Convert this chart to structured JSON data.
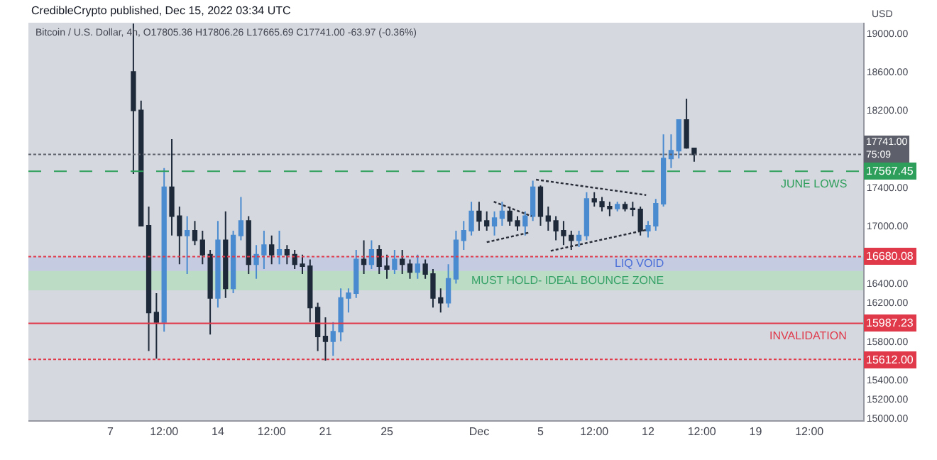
{
  "chart_data": {
    "type": "candlestick",
    "title": "CredibleCrypto published, Dec 15, 2022 03:34 UTC",
    "subtitle": "Bitcoin / U.S. Dollar, 4h, O17805.36 H17806.26 L17665.69 C17741.00 -63.97 (-0.36%)",
    "ylabel": "USD",
    "colors": [
      "#1e2a3a",
      "#1e2a3a",
      "#1e2a3a",
      "#1e2a3a",
      "#4a8bd0",
      "#1e2a3a",
      "#1e2a3a",
      "#4a8bd0",
      "#1e2a3a",
      "#1e2a3a",
      "#1e2a3a",
      "#4a8bd0",
      "#1e2a3a",
      "#4a8bd0",
      "#4a8bd0",
      "#1e2a3a",
      "#4a8bd0",
      "#4a8bd0",
      "#1e2a3a",
      "#4a8bd0",
      "#1e2a3a",
      "#1e2a3a",
      "#1e2a3a",
      "#1e2a3a",
      "#1e2a3a",
      "#1e2a3a",
      "#4a8bd0",
      "#4a8bd0",
      "#4a8bd0",
      "#4a8bd0",
      "#1e2a3a",
      "#4a8bd0",
      "#1e2a3a",
      "#1e2a3a",
      "#4a8bd0",
      "#1e2a3a",
      "#1e2a3a",
      "#4a8bd0",
      "#1e2a3a",
      "#1e2a3a",
      "#1e2a3a",
      "#4a8bd0",
      "#4a8bd0",
      "#4a8bd0",
      "#4a8bd0",
      "#1e2a3a",
      "#1e2a3a",
      "#4a8bd0",
      "#4a8bd0",
      "#1e2a3a",
      "#1e2a3a",
      "#4a8bd0",
      "#4a8bd0",
      "#1e2a3a",
      "#1e2a3a",
      "#1e2a3a",
      "#1e2a3a",
      "#1e2a3a",
      "#4a8bd0",
      "#4a8bd0",
      "#1e2a3a",
      "#1e2a3a",
      "#1e2a3a",
      "#4a8bd0",
      "#1e2a3a",
      "#1e2a3a",
      "#1e2a3a",
      "#4a8bd0",
      "#4a8bd0",
      "#4a8bd0",
      "#4a8bd0",
      "#4a8bd0",
      "#1e2a3a",
      "#1e2a3a"
    ],
    "x": [
      "2022-11-08T12:00",
      "2022-11-09T00:00",
      "2022-11-09T12:00",
      "2022-11-10T00:00",
      "2022-11-10T12:00",
      "2022-11-11T00:00",
      "2022-11-11T12:00",
      "2022-11-12T00:00",
      "2022-11-12T12:00",
      "2022-11-13T00:00",
      "2022-11-13T12:00",
      "2022-11-14T00:00",
      "2022-11-14T12:00",
      "2022-11-15T00:00",
      "2022-11-15T12:00",
      "2022-11-16T00:00",
      "2022-11-16T12:00",
      "2022-11-17T00:00",
      "2022-11-17T12:00",
      "2022-11-18T00:00",
      "2022-11-18T12:00",
      "2022-11-19T00:00",
      "2022-11-19T12:00",
      "2022-11-20T00:00",
      "2022-11-20T12:00",
      "2022-11-21T00:00",
      "2022-11-21T12:00",
      "2022-11-22T00:00",
      "2022-11-22T12:00",
      "2022-11-23T00:00",
      "2022-11-23T12:00",
      "2022-11-24T00:00",
      "2022-11-24T12:00",
      "2022-11-25T00:00",
      "2022-11-25T12:00",
      "2022-11-26T00:00",
      "2022-11-26T12:00",
      "2022-11-27T00:00",
      "2022-11-27T12:00",
      "2022-11-28T00:00",
      "2022-11-28T12:00",
      "2022-11-29T00:00",
      "2022-11-29T12:00",
      "2022-11-30T00:00",
      "2022-11-30T12:00",
      "2022-12-01T00:00",
      "2022-12-01T12:00",
      "2022-12-02T00:00",
      "2022-12-02T12:00",
      "2022-12-03T00:00",
      "2022-12-03T12:00",
      "2022-12-04T00:00",
      "2022-12-04T12:00",
      "2022-12-05T00:00",
      "2022-12-05T12:00",
      "2022-12-06T00:00",
      "2022-12-06T12:00",
      "2022-12-07T00:00",
      "2022-12-07T12:00",
      "2022-12-08T00:00",
      "2022-12-08T12:00",
      "2022-12-09T00:00",
      "2022-12-09T12:00",
      "2022-12-10T00:00",
      "2022-12-10T12:00",
      "2022-12-11T00:00",
      "2022-12-11T12:00",
      "2022-12-12T00:00",
      "2022-12-12T12:00",
      "2022-12-13T00:00",
      "2022-12-13T12:00",
      "2022-12-14T00:00",
      "2022-12-14T12:00",
      "2022-12-15T00:00"
    ],
    "ohlc": [
      [
        18600,
        19100,
        17540,
        18200
      ],
      [
        18200,
        18300,
        17000,
        17000
      ],
      [
        17000,
        17200,
        15700,
        16100
      ],
      [
        16100,
        16300,
        15620,
        16000
      ],
      [
        16000,
        17600,
        15900,
        17400
      ],
      [
        17400,
        17900,
        16900,
        17100
      ],
      [
        17100,
        17200,
        16600,
        16900
      ],
      [
        16900,
        17100,
        16500,
        16950
      ],
      [
        16950,
        17050,
        16800,
        16850
      ],
      [
        16850,
        16950,
        16600,
        16700
      ],
      [
        16700,
        16750,
        15870,
        16250
      ],
      [
        16250,
        17050,
        16150,
        16850
      ],
      [
        16850,
        17150,
        16250,
        16350
      ],
      [
        16350,
        16950,
        16300,
        16900
      ],
      [
        16900,
        17300,
        16850,
        17050
      ],
      [
        17050,
        17100,
        16500,
        16600
      ],
      [
        16600,
        16800,
        16450,
        16700
      ],
      [
        16700,
        16950,
        16550,
        16800
      ],
      [
        16800,
        16900,
        16600,
        16700
      ],
      [
        16700,
        16950,
        16600,
        16750
      ],
      [
        16750,
        16800,
        16600,
        16700
      ],
      [
        16700,
        16750,
        16550,
        16600
      ],
      [
        16600,
        16700,
        16500,
        16580
      ],
      [
        16580,
        16650,
        16000,
        16150
      ],
      [
        16150,
        16200,
        15700,
        15850
      ],
      [
        15850,
        16050,
        15600,
        15800
      ],
      [
        15800,
        16000,
        15650,
        15900
      ],
      [
        15900,
        16350,
        15800,
        16250
      ],
      [
        16250,
        16350,
        16100,
        16300
      ],
      [
        16300,
        16750,
        16250,
        16650
      ],
      [
        16650,
        16850,
        16500,
        16600
      ],
      [
        16600,
        16850,
        16550,
        16750
      ],
      [
        16750,
        16800,
        16500,
        16580
      ],
      [
        16580,
        16700,
        16450,
        16550
      ],
      [
        16550,
        16750,
        16500,
        16650
      ],
      [
        16650,
        16750,
        16500,
        16600
      ],
      [
        16600,
        16650,
        16450,
        16520
      ],
      [
        16520,
        16700,
        16450,
        16600
      ],
      [
        16600,
        16650,
        16450,
        16500
      ],
      [
        16500,
        16550,
        16150,
        16250
      ],
      [
        16250,
        16350,
        16100,
        16200
      ],
      [
        16200,
        16600,
        16150,
        16450
      ],
      [
        16450,
        16950,
        16400,
        16850
      ],
      [
        16850,
        17050,
        16750,
        16950
      ],
      [
        16950,
        17250,
        16900,
        17150
      ],
      [
        17150,
        17250,
        16950,
        17050
      ],
      [
        17050,
        17150,
        16950,
        17000
      ],
      [
        17000,
        17150,
        16900,
        17080
      ],
      [
        17080,
        17250,
        17000,
        17150
      ],
      [
        17150,
        17200,
        17000,
        17050
      ],
      [
        17050,
        17100,
        16950,
        17000
      ],
      [
        17000,
        17150,
        16900,
        17100
      ],
      [
        17100,
        17470,
        17050,
        17400
      ],
      [
        17400,
        17420,
        17000,
        17100
      ],
      [
        17100,
        17200,
        16950,
        17050
      ],
      [
        17050,
        17100,
        16850,
        16950
      ],
      [
        16950,
        17050,
        16800,
        16900
      ],
      [
        16900,
        16950,
        16750,
        16850
      ],
      [
        16850,
        16950,
        16780,
        16900
      ],
      [
        16900,
        17350,
        16850,
        17280
      ],
      [
        17280,
        17350,
        17200,
        17250
      ],
      [
        17250,
        17300,
        17150,
        17200
      ],
      [
        17200,
        17250,
        17100,
        17180
      ],
      [
        17180,
        17250,
        17150,
        17220
      ],
      [
        17220,
        17250,
        17150,
        17180
      ],
      [
        17180,
        17250,
        17100,
        17170
      ],
      [
        17170,
        17200,
        16900,
        16950
      ],
      [
        16950,
        17050,
        16880,
        17000
      ],
      [
        17000,
        17280,
        16950,
        17230
      ],
      [
        17230,
        17950,
        17200,
        17700
      ],
      [
        17700,
        17950,
        17600,
        17780
      ],
      [
        17780,
        18100,
        17700,
        18100
      ],
      [
        18100,
        18320,
        17800,
        17810
      ],
      [
        17805.36,
        17806.26,
        17665.69,
        17741.0
      ]
    ],
    "series": [
      {
        "type": "line",
        "color": "#2a2e39",
        "line_style": "dotted",
        "x": [
          "2022-12-04T17:00",
          "2022-12-11T21:00"
        ],
        "values": [
          17480,
          17320
        ]
      },
      {
        "type": "line",
        "color": "#2a2e39",
        "line_style": "dotted",
        "x": [
          "2022-12-05T16:00",
          "2022-12-11T23:00"
        ],
        "values": [
          16740,
          16960
        ]
      },
      {
        "type": "line",
        "color": "#2a2e39",
        "line_style": "dotted",
        "x": [
          "2022-12-01T23:00",
          "2022-12-04T10:00"
        ],
        "values": [
          17250,
          17100
        ]
      },
      {
        "type": "line",
        "color": "#2a2e39",
        "line_style": "dotted",
        "x": [
          "2022-12-01T12:00",
          "2022-12-04T06:00"
        ],
        "values": [
          16830,
          16930
        ]
      }
    ],
    "ref_lines": [
      {
        "axis": "y",
        "value": 17741.0,
        "label": "17741.00",
        "color": "#5d606b",
        "line_style": "dotted"
      },
      {
        "axis": "y",
        "value": 17567.45,
        "label": "17567.45",
        "color": "#2e9e5b",
        "line_style": "dashed"
      },
      {
        "axis": "y",
        "value": 16680.08,
        "label": "16680.08",
        "color": "#e0394a",
        "line_style": "dotted"
      },
      {
        "axis": "y",
        "value": 15987.23,
        "label": "15987.23",
        "color": "#e0394a",
        "line_style": "solid"
      },
      {
        "axis": "y",
        "value": 15612.0,
        "label": "15612.00",
        "color": "#e0394a",
        "line_style": "dotted"
      }
    ],
    "bands": [
      {
        "axis": "y",
        "from": 16530,
        "to": 16680,
        "label": "LIQ VOID",
        "color": "#c5cbe0"
      },
      {
        "axis": "y",
        "from": 16330,
        "to": 16530,
        "label": "MUST HOLD- IDEAL BOUNCE ZONE",
        "color": "#bcdcc6"
      }
    ],
    "annotations": [
      "75:09",
      {
        "text": "JUNE LOWS",
        "y": 17567.45
      },
      {
        "text": "INVALIDATION",
        "y": 15987.23
      }
    ],
    "xlim": [
      "2022-11-01T16:00",
      "2022-12-26T00:00"
    ],
    "xticks": [
      {
        "value": "2022-11-07",
        "label": "7"
      },
      {
        "value": "2022-11-10T12:00",
        "label": "12:00"
      },
      {
        "value": "2022-11-14",
        "label": "14"
      },
      {
        "value": "2022-11-17T12:00",
        "label": "12:00"
      },
      {
        "value": "2022-11-21",
        "label": "21"
      },
      {
        "value": "2022-11-25",
        "label": "25"
      },
      {
        "value": "2022-12-01",
        "label": "Dec"
      },
      {
        "value": "2022-12-05",
        "label": "5"
      },
      {
        "value": "2022-12-08T12:00",
        "label": "12:00"
      },
      {
        "value": "2022-12-12",
        "label": "12"
      },
      {
        "value": "2022-12-15T12:00",
        "label": "12:00"
      },
      {
        "value": "2022-12-19",
        "label": "19"
      },
      {
        "value": "2022-12-22T12:00",
        "label": "12:00"
      }
    ],
    "ylim": [
      14980,
      19110
    ],
    "yticks": [
      {
        "value": 19000,
        "label": "19000.00"
      },
      {
        "value": 18600,
        "label": "18600.00"
      },
      {
        "value": 18200,
        "label": "18200.00"
      },
      {
        "value": 17400,
        "label": "17400.00"
      },
      {
        "value": 17000,
        "label": "17000.00"
      },
      {
        "value": 16400,
        "label": "16400.00"
      },
      {
        "value": 16200,
        "label": "16200.00"
      },
      {
        "value": 15800,
        "label": "15800.00"
      },
      {
        "value": 15400,
        "label": "15400.00"
      },
      {
        "value": 15200,
        "label": "15200.00"
      },
      {
        "value": 15000,
        "label": "15000.00"
      }
    ],
    "grid": false
  }
}
